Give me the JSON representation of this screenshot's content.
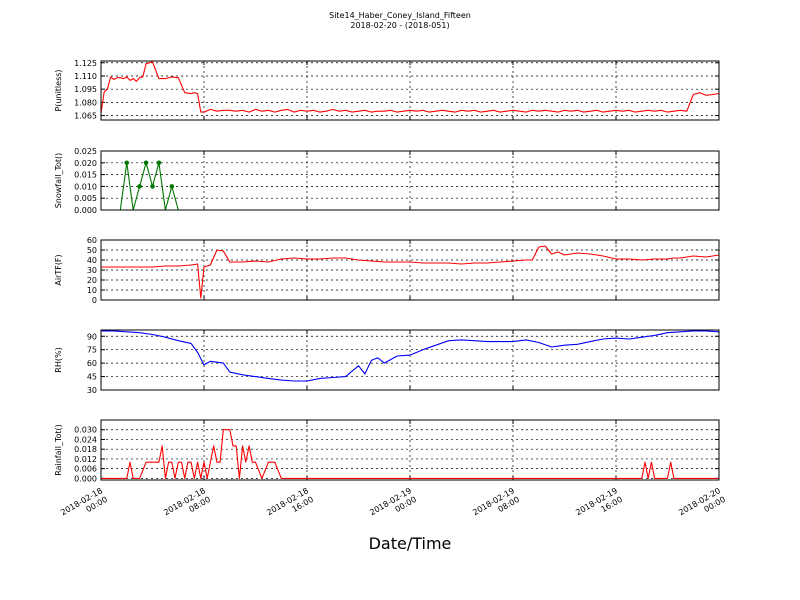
{
  "header": {
    "title": "Site14_Haber_Coney_Island_Fifteen",
    "subtitle": "2018-02-20 - (2018-051)"
  },
  "xlabel": "Date/Time",
  "chart_data": [
    {
      "type": "line",
      "ylabel": "P(unitless)",
      "ylim": [
        1.06,
        1.127
      ],
      "yticks": [
        1.065,
        1.08,
        1.095,
        1.11,
        1.125
      ],
      "ytick_labels": [
        "1.065",
        "1.080",
        "1.095",
        "1.110",
        "1.125"
      ],
      "grid": true,
      "series": [
        {
          "color": "#ff0000",
          "x": [
            0,
            0.25,
            0.5,
            0.75,
            1,
            1.25,
            1.5,
            1.75,
            2,
            2.25,
            2.5,
            2.75,
            3,
            3.25,
            3.5,
            3.75,
            4,
            4.5,
            5,
            5.5,
            6,
            6.5,
            7,
            7.25,
            7.5,
            7.75,
            8,
            8.5,
            9,
            9.5,
            10,
            10.5,
            11,
            11.5,
            12,
            12.5,
            13,
            13.5,
            14,
            14.5,
            15,
            15.5,
            16,
            16.5,
            17,
            17.5,
            18,
            18.5,
            19,
            19.5,
            20,
            20.5,
            21,
            21.5,
            22,
            22.5,
            23,
            23.5,
            24,
            24.5,
            25,
            25.5,
            26,
            26.5,
            27,
            27.5,
            28,
            28.5,
            29,
            29.5,
            30,
            30.5,
            31,
            31.5,
            32,
            32.5,
            33,
            33.5,
            34,
            34.5,
            35,
            35.5,
            36,
            36.5,
            37,
            37.5,
            38,
            38.5,
            39,
            39.5,
            40,
            40.5,
            41,
            41.5,
            42,
            42.5,
            43,
            43.5,
            44,
            44.5,
            45,
            45.5,
            46,
            46.5,
            47,
            47.5,
            48
          ],
          "y": [
            1.068,
            1.092,
            1.095,
            1.109,
            1.106,
            1.108,
            1.108,
            1.107,
            1.109,
            1.105,
            1.107,
            1.104,
            1.108,
            1.109,
            1.124,
            1.125,
            1.126,
            1.107,
            1.107,
            1.109,
            1.108,
            1.091,
            1.09,
            1.091,
            1.09,
            1.069,
            1.069,
            1.072,
            1.07,
            1.071,
            1.071,
            1.07,
            1.071,
            1.069,
            1.072,
            1.07,
            1.071,
            1.069,
            1.071,
            1.072,
            1.069,
            1.071,
            1.07,
            1.071,
            1.069,
            1.07,
            1.072,
            1.07,
            1.071,
            1.069,
            1.07,
            1.071,
            1.069,
            1.07,
            1.07,
            1.071,
            1.069,
            1.07,
            1.071,
            1.07,
            1.071,
            1.069,
            1.07,
            1.071,
            1.07,
            1.069,
            1.071,
            1.07,
            1.071,
            1.069,
            1.07,
            1.071,
            1.069,
            1.07,
            1.071,
            1.07,
            1.069,
            1.071,
            1.07,
            1.071,
            1.07,
            1.069,
            1.071,
            1.07,
            1.071,
            1.069,
            1.07,
            1.071,
            1.069,
            1.07,
            1.071,
            1.07,
            1.071,
            1.069,
            1.07,
            1.071,
            1.07,
            1.071,
            1.069,
            1.07,
            1.071,
            1.07,
            1.089,
            1.091,
            1.088,
            1.089,
            1.09
          ]
        }
      ]
    },
    {
      "type": "line",
      "ylabel": "Snowfall_Tot()",
      "ylim": [
        0,
        0.025
      ],
      "yticks": [
        0,
        0.005,
        0.01,
        0.015,
        0.02,
        0.025
      ],
      "ytick_labels": [
        "0.000",
        "0.005",
        "0.010",
        "0.015",
        "0.020",
        "0.025"
      ],
      "grid": true,
      "series": [
        {
          "color": "#007700",
          "markers": true,
          "x": [
            0,
            1,
            1.5,
            2,
            2.5,
            3,
            3.5,
            4,
            4.5,
            5,
            5.5,
            6,
            7,
            8,
            9,
            10,
            12,
            16,
            20,
            24,
            28,
            32,
            36,
            40,
            44,
            48
          ],
          "y": [
            0,
            0,
            0,
            0.02,
            0,
            0.01,
            0.02,
            0.01,
            0.02,
            0,
            0.01,
            0,
            0,
            0,
            0,
            0,
            0,
            0,
            0,
            0,
            0,
            0,
            0,
            0,
            0,
            0
          ]
        }
      ]
    },
    {
      "type": "line",
      "ylabel": "AirTF(F)",
      "ylim": [
        0,
        60
      ],
      "yticks": [
        0,
        10,
        20,
        30,
        40,
        50,
        60
      ],
      "ytick_labels": [
        "0",
        "10",
        "20",
        "30",
        "40",
        "50",
        "60"
      ],
      "grid": true,
      "series": [
        {
          "color": "#ff0000",
          "x": [
            0,
            1,
            2,
            3,
            4,
            5,
            6,
            7,
            7.5,
            7.75,
            8,
            8.5,
            9,
            9.5,
            10,
            11,
            12,
            13,
            14,
            15,
            16,
            17,
            18,
            19,
            20,
            21,
            22,
            23,
            24,
            25,
            26,
            27,
            28,
            29,
            30,
            31,
            32,
            33,
            33.5,
            34,
            34.5,
            35,
            35.5,
            36,
            37,
            38,
            39,
            40,
            41,
            42,
            43,
            44,
            44.5,
            45,
            46,
            47,
            48
          ],
          "y": [
            33,
            33,
            33,
            33,
            33,
            34,
            34,
            35,
            36,
            2,
            33,
            35,
            50,
            49,
            38,
            38,
            39,
            38,
            41,
            42,
            41,
            41,
            42,
            42,
            40,
            39,
            38,
            38,
            38,
            37,
            37,
            37,
            36,
            37,
            37,
            38,
            39,
            40,
            40,
            53,
            54,
            46,
            48,
            45,
            47,
            46,
            44,
            41,
            41,
            40,
            41,
            41,
            42,
            42,
            44,
            43,
            45
          ]
        }
      ]
    },
    {
      "type": "line",
      "ylabel": "RH(%)",
      "ylim": [
        30,
        97
      ],
      "yticks": [
        30,
        45,
        60,
        75,
        90
      ],
      "ytick_labels": [
        "30",
        "45",
        "60",
        "75",
        "90"
      ],
      "grid": true,
      "series": [
        {
          "color": "#0000ff",
          "x": [
            0,
            1,
            2,
            3,
            4,
            5,
            6,
            7,
            7.5,
            8,
            8.5,
            9,
            9.5,
            10,
            11,
            12,
            13,
            14,
            15,
            16,
            17,
            18,
            19,
            20,
            20.5,
            21,
            21.5,
            22,
            23,
            24,
            25,
            26,
            27,
            28,
            29,
            30,
            31,
            32,
            33,
            34,
            35,
            36,
            37,
            38,
            39,
            40,
            41,
            42,
            43,
            44,
            45,
            46,
            47,
            48
          ],
          "y": [
            96,
            96,
            95,
            94,
            92,
            89,
            85,
            82,
            72,
            58,
            62,
            61,
            60,
            50,
            47,
            45,
            43,
            41,
            40,
            40,
            43,
            44,
            45,
            57,
            48,
            63,
            66,
            60,
            68,
            69,
            75,
            80,
            85,
            86,
            85,
            84,
            84,
            84,
            86,
            83,
            78,
            80,
            81,
            84,
            87,
            88,
            87,
            89,
            91,
            94,
            95,
            96,
            96,
            95
          ]
        }
      ]
    },
    {
      "type": "line",
      "ylabel": "Rainfall_Tot()",
      "ylim": [
        -0.001,
        0.036
      ],
      "yticks": [
        0,
        0.006,
        0.012,
        0.018,
        0.024,
        0.03
      ],
      "ytick_labels": [
        "0.000",
        "0.006",
        "0.012",
        "0.018",
        "0.024",
        "0.030"
      ],
      "grid": true,
      "series": [
        {
          "color": "#ff0000",
          "x": [
            0,
            1,
            2,
            2.25,
            2.5,
            3,
            3.5,
            4,
            4.5,
            4.75,
            5,
            5.25,
            5.5,
            5.75,
            6,
            6.25,
            6.5,
            6.75,
            7,
            7.25,
            7.5,
            7.75,
            8,
            8.25,
            8.5,
            8.75,
            9,
            9.25,
            9.5,
            9.75,
            10,
            10.25,
            10.5,
            10.75,
            11,
            11.25,
            11.5,
            11.75,
            12,
            12.5,
            13,
            13.25,
            13.5,
            14,
            16,
            20,
            24,
            28,
            32,
            36,
            40,
            42,
            42.25,
            42.5,
            42.75,
            43,
            43.25,
            43.5,
            44,
            44.25,
            44.5,
            45,
            46,
            48
          ],
          "y": [
            0,
            0,
            0,
            0.01,
            0,
            0,
            0.01,
            0.01,
            0.01,
            0.02,
            0,
            0.01,
            0.01,
            0,
            0.01,
            0.01,
            0,
            0.01,
            0.01,
            0,
            0.01,
            0,
            0.01,
            0,
            0.01,
            0.02,
            0.01,
            0.01,
            0.03,
            0.03,
            0.03,
            0.02,
            0.02,
            0,
            0.02,
            0.01,
            0.02,
            0.01,
            0.01,
            0,
            0.01,
            0.01,
            0.01,
            0,
            0,
            0,
            0,
            0,
            0,
            0,
            0,
            0,
            0.01,
            0,
            0.01,
            0,
            0,
            0,
            0,
            0.01,
            0,
            0,
            0,
            0
          ]
        }
      ]
    }
  ],
  "xaxis": {
    "range_hours": [
      0,
      48
    ],
    "ticks": [
      {
        "hours": 0,
        "line1": "2018-02-18",
        "line2": "00:00"
      },
      {
        "hours": 8,
        "line1": "2018-02-18",
        "line2": "08:00"
      },
      {
        "hours": 16,
        "line1": "2018-02-18",
        "line2": "16:00"
      },
      {
        "hours": 24,
        "line1": "2018-02-19",
        "line2": "00:00"
      },
      {
        "hours": 32,
        "line1": "2018-02-19",
        "line2": "08:00"
      },
      {
        "hours": 40,
        "line1": "2018-02-19",
        "line2": "16:00"
      },
      {
        "hours": 48,
        "line1": "2018-02-20",
        "line2": "00:00"
      }
    ]
  }
}
